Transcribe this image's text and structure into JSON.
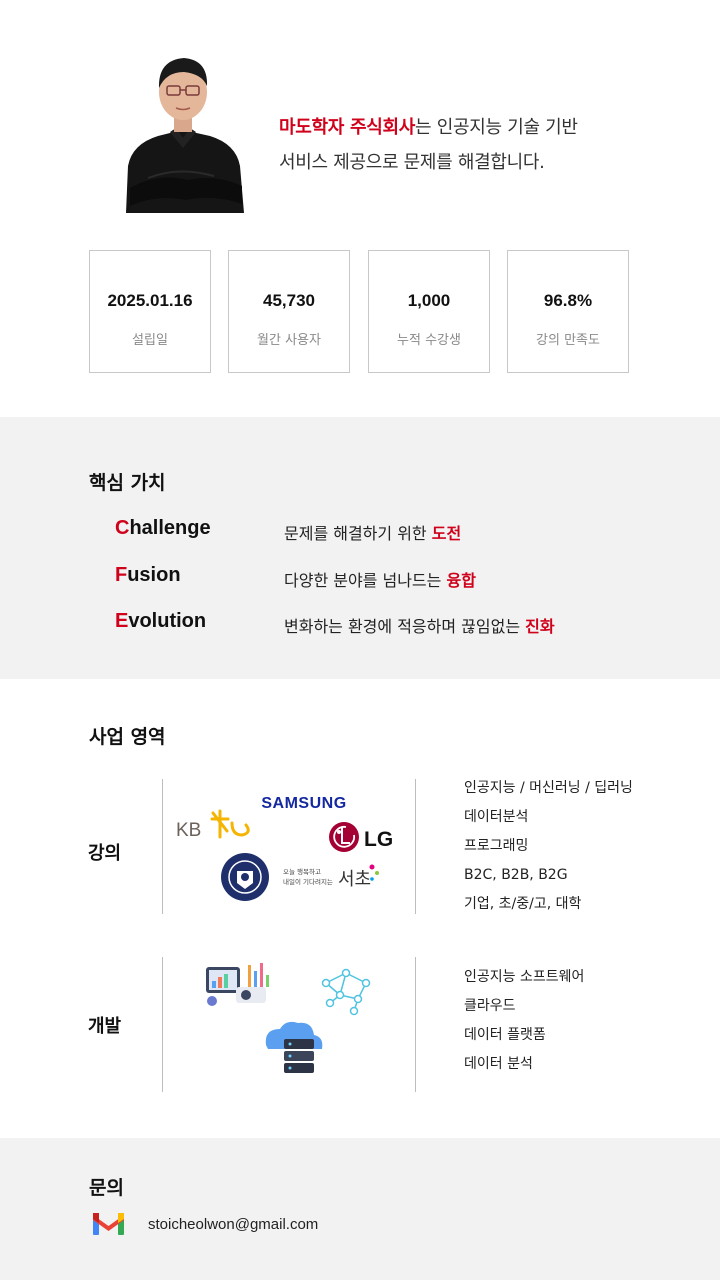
{
  "hero": {
    "company": "마도학자 주식회사",
    "intro_line1_suffix": "는 인공지능 기술 기반",
    "intro_line2": "서비스 제공으로 문제를 해결합니다."
  },
  "stats": [
    {
      "value": "2025.01.16",
      "label": "설립일"
    },
    {
      "value": "45,730",
      "label": "월간 사용자"
    },
    {
      "value": "1,000",
      "label": "누적 수강생"
    },
    {
      "value": "96.8%",
      "label": "강의 만족도"
    }
  ],
  "values": {
    "title": "핵심 가치",
    "items": [
      {
        "first": "C",
        "rest": "hallenge",
        "desc": "문제를 해결하기 위한 ",
        "highlight": "도전"
      },
      {
        "first": "F",
        "rest": "usion",
        "desc": "다양한 분야를 넘나드는 ",
        "highlight": "융합"
      },
      {
        "first": "E",
        "rest": "volution",
        "desc": "변화하는 환경에 적응하며 끊임없는 ",
        "highlight": "진화"
      }
    ]
  },
  "business": {
    "title": "사업 영역",
    "lecture": {
      "label": "강의",
      "logos": {
        "samsung": "SAMSUNG",
        "kb": "KB",
        "lg": "LG",
        "seocho_small1": "오늘 행복하고",
        "seocho_small2": "내일이 기다려지는",
        "seocho_big": "서초",
        "univ": "YONSEI UNIVERSITY"
      },
      "items": [
        "인공지능 / 머신러닝 / 딥러닝",
        "데이터분석",
        "프로그래밍",
        "B2C, B2B, B2G",
        "기업, 초/중/고, 대학"
      ]
    },
    "dev": {
      "label": "개발",
      "items": [
        "인공지능 소프트웨어",
        "클라우드",
        "데이터 플랫폼",
        "데이터 분석"
      ]
    }
  },
  "contact": {
    "title": "문의",
    "email": "stoicheolwon@gmail.com",
    "icon": "gmail-icon"
  },
  "colors": {
    "accent": "#d0021b",
    "samsung": "#1428a0",
    "lg": "#a50034",
    "kb_gray": "#6b6259",
    "kb_gold": "#f5b400"
  }
}
